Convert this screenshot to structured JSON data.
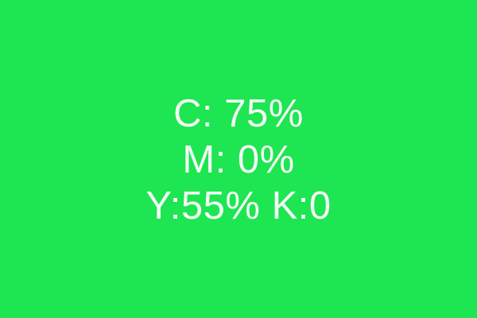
{
  "swatch": {
    "background_color": "#1ee552",
    "text_color": "#f4fbf6",
    "lines": [
      "C: 75%",
      "M: 0%",
      "Y:55% K:0"
    ]
  }
}
